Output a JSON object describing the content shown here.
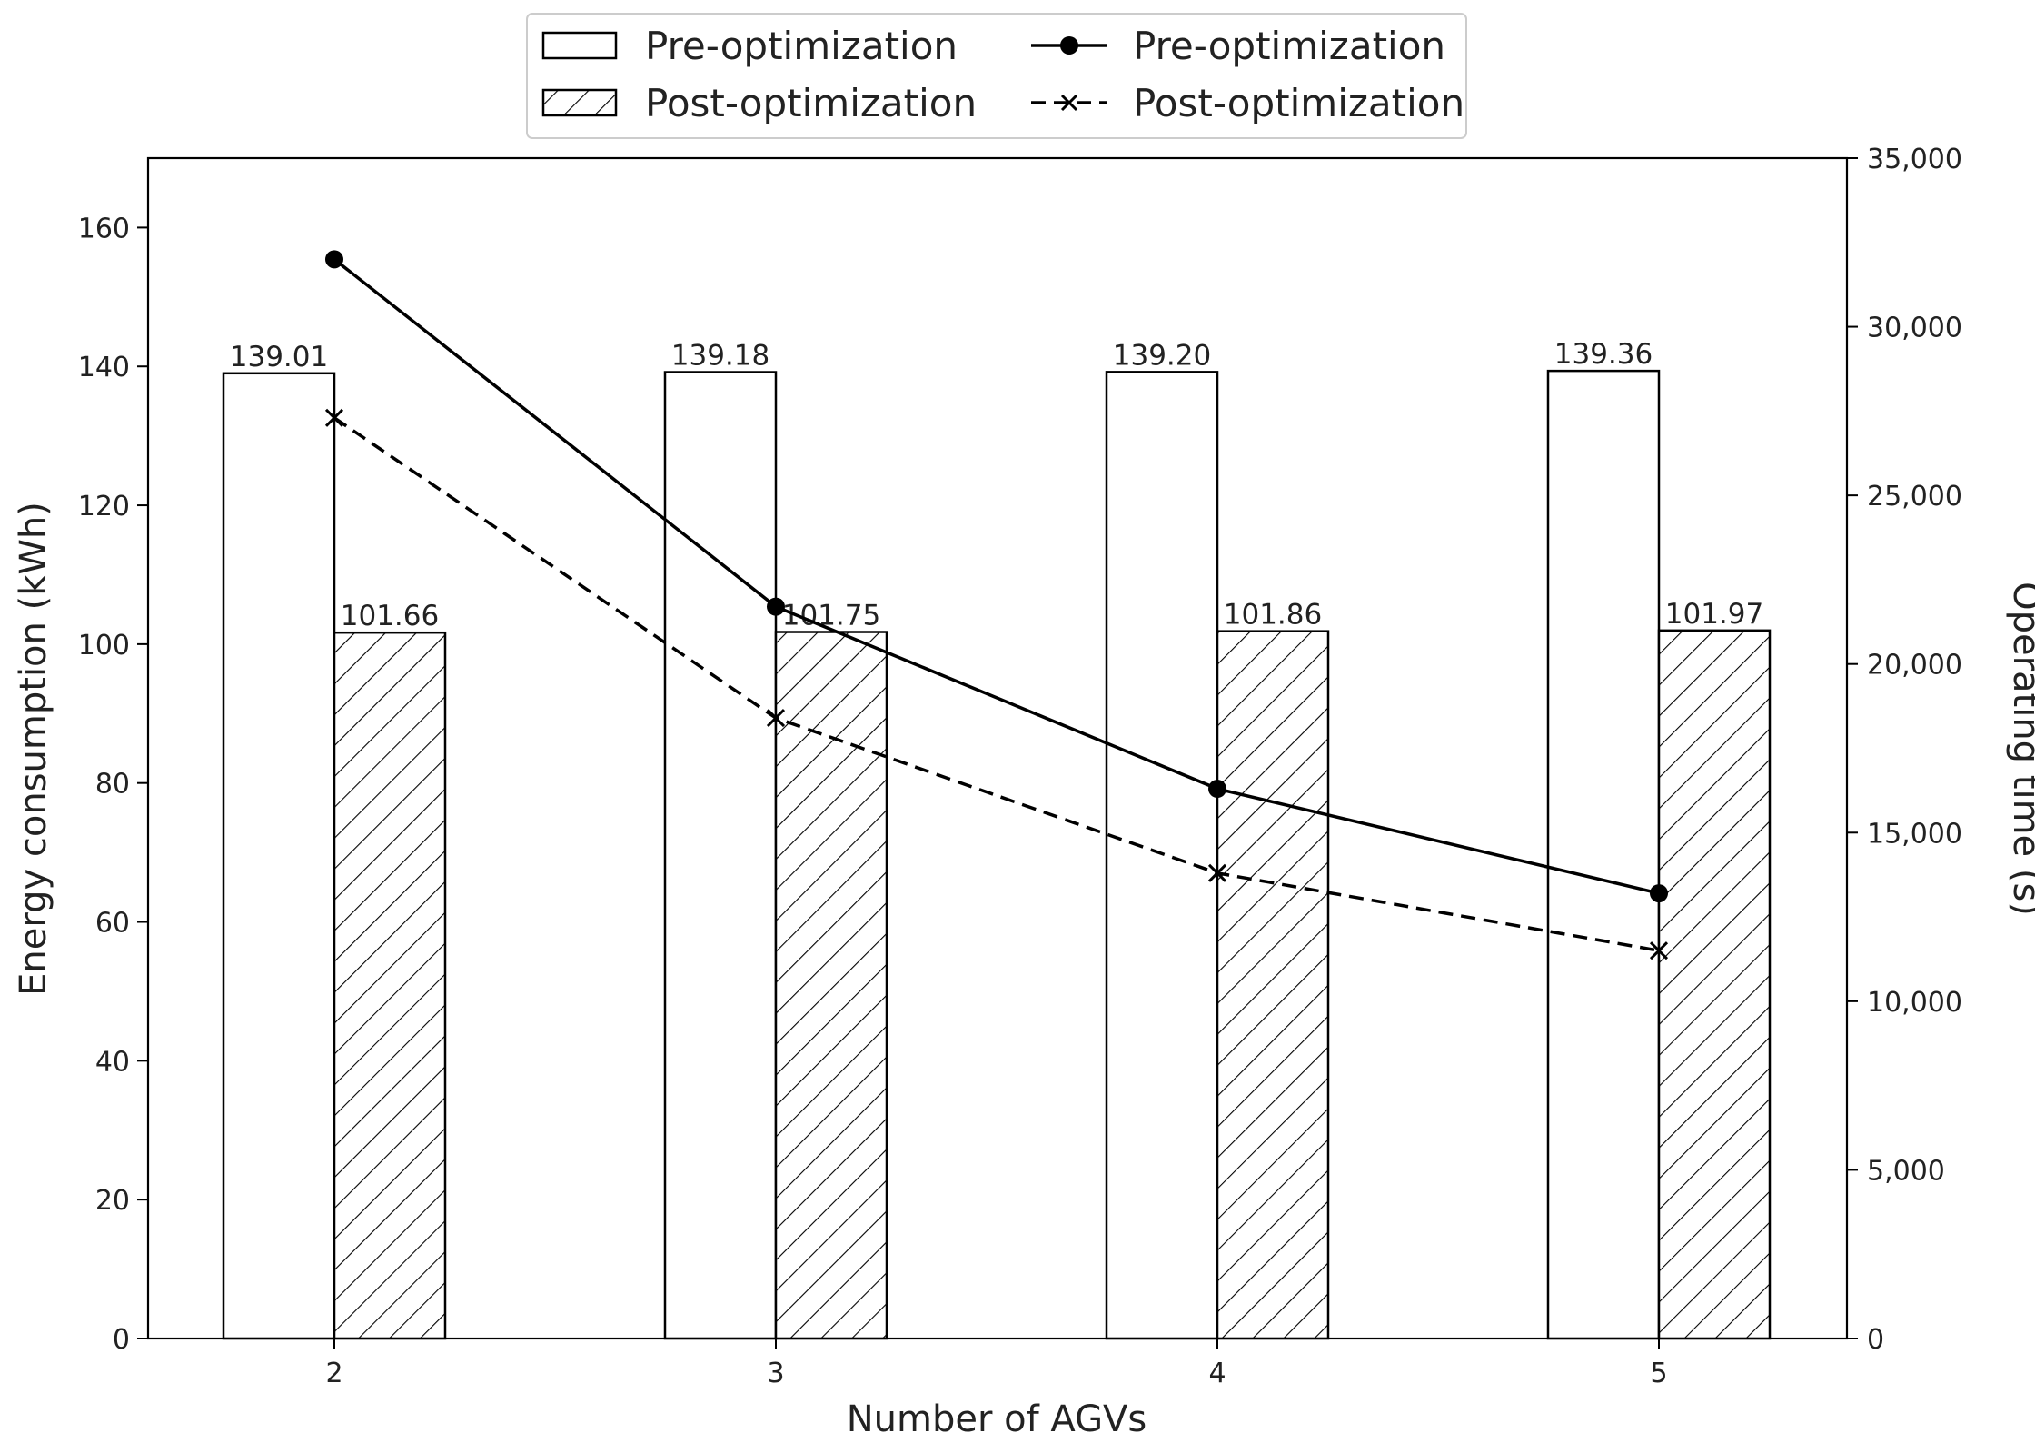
{
  "chart_data": {
    "type": "bar",
    "categories": [
      "2",
      "3",
      "4",
      "5"
    ],
    "xlabel": "Number of AGVs",
    "ylabel": "Energy consumption (kWh)",
    "y2label": "Operating time (s)",
    "ylim": [
      0,
      170
    ],
    "y2lim": [
      0,
      35000
    ],
    "yticks": [
      0,
      20,
      40,
      60,
      80,
      100,
      120,
      140,
      160
    ],
    "y2ticks": [
      0,
      5000,
      10000,
      15000,
      20000,
      25000,
      30000,
      35000
    ],
    "ytick_labels": [
      "0",
      "20",
      "40",
      "60",
      "80",
      "100",
      "120",
      "140",
      "160"
    ],
    "y2tick_labels": [
      "0",
      "5,000",
      "10,000",
      "15,000",
      "20,000",
      "25,000",
      "30,000",
      "35,000"
    ],
    "bar_series": [
      {
        "name": "Pre-optimization",
        "style": "open",
        "values": [
          139.01,
          139.18,
          139.2,
          139.36
        ],
        "labels": [
          "139.01",
          "139.18",
          "139.20",
          "139.36"
        ]
      },
      {
        "name": "Post-optimization",
        "style": "hatched",
        "values": [
          101.66,
          101.75,
          101.86,
          101.97
        ],
        "labels": [
          "101.66",
          "101.75",
          "101.86",
          "101.97"
        ]
      }
    ],
    "line_series": [
      {
        "name": "Pre-optimization",
        "axis": "right",
        "marker": "circle",
        "dash": "solid",
        "values": [
          32000,
          21700,
          16300,
          13200
        ]
      },
      {
        "name": "Post-optimization",
        "axis": "right",
        "marker": "x",
        "dash": "dashed",
        "values": [
          27300,
          18400,
          13800,
          11500
        ]
      }
    ],
    "legend": {
      "placement": "top-center",
      "entries": [
        {
          "label": "Pre-optimization",
          "kind": "bar-open"
        },
        {
          "label": "Post-optimization",
          "kind": "bar-hatched"
        },
        {
          "label": "Pre-optimization",
          "kind": "line-circle"
        },
        {
          "label": "Post-optimization",
          "kind": "line-x"
        }
      ]
    },
    "colors": {
      "ink": "#000000",
      "text": "#222222",
      "background": "#ffffff"
    }
  }
}
